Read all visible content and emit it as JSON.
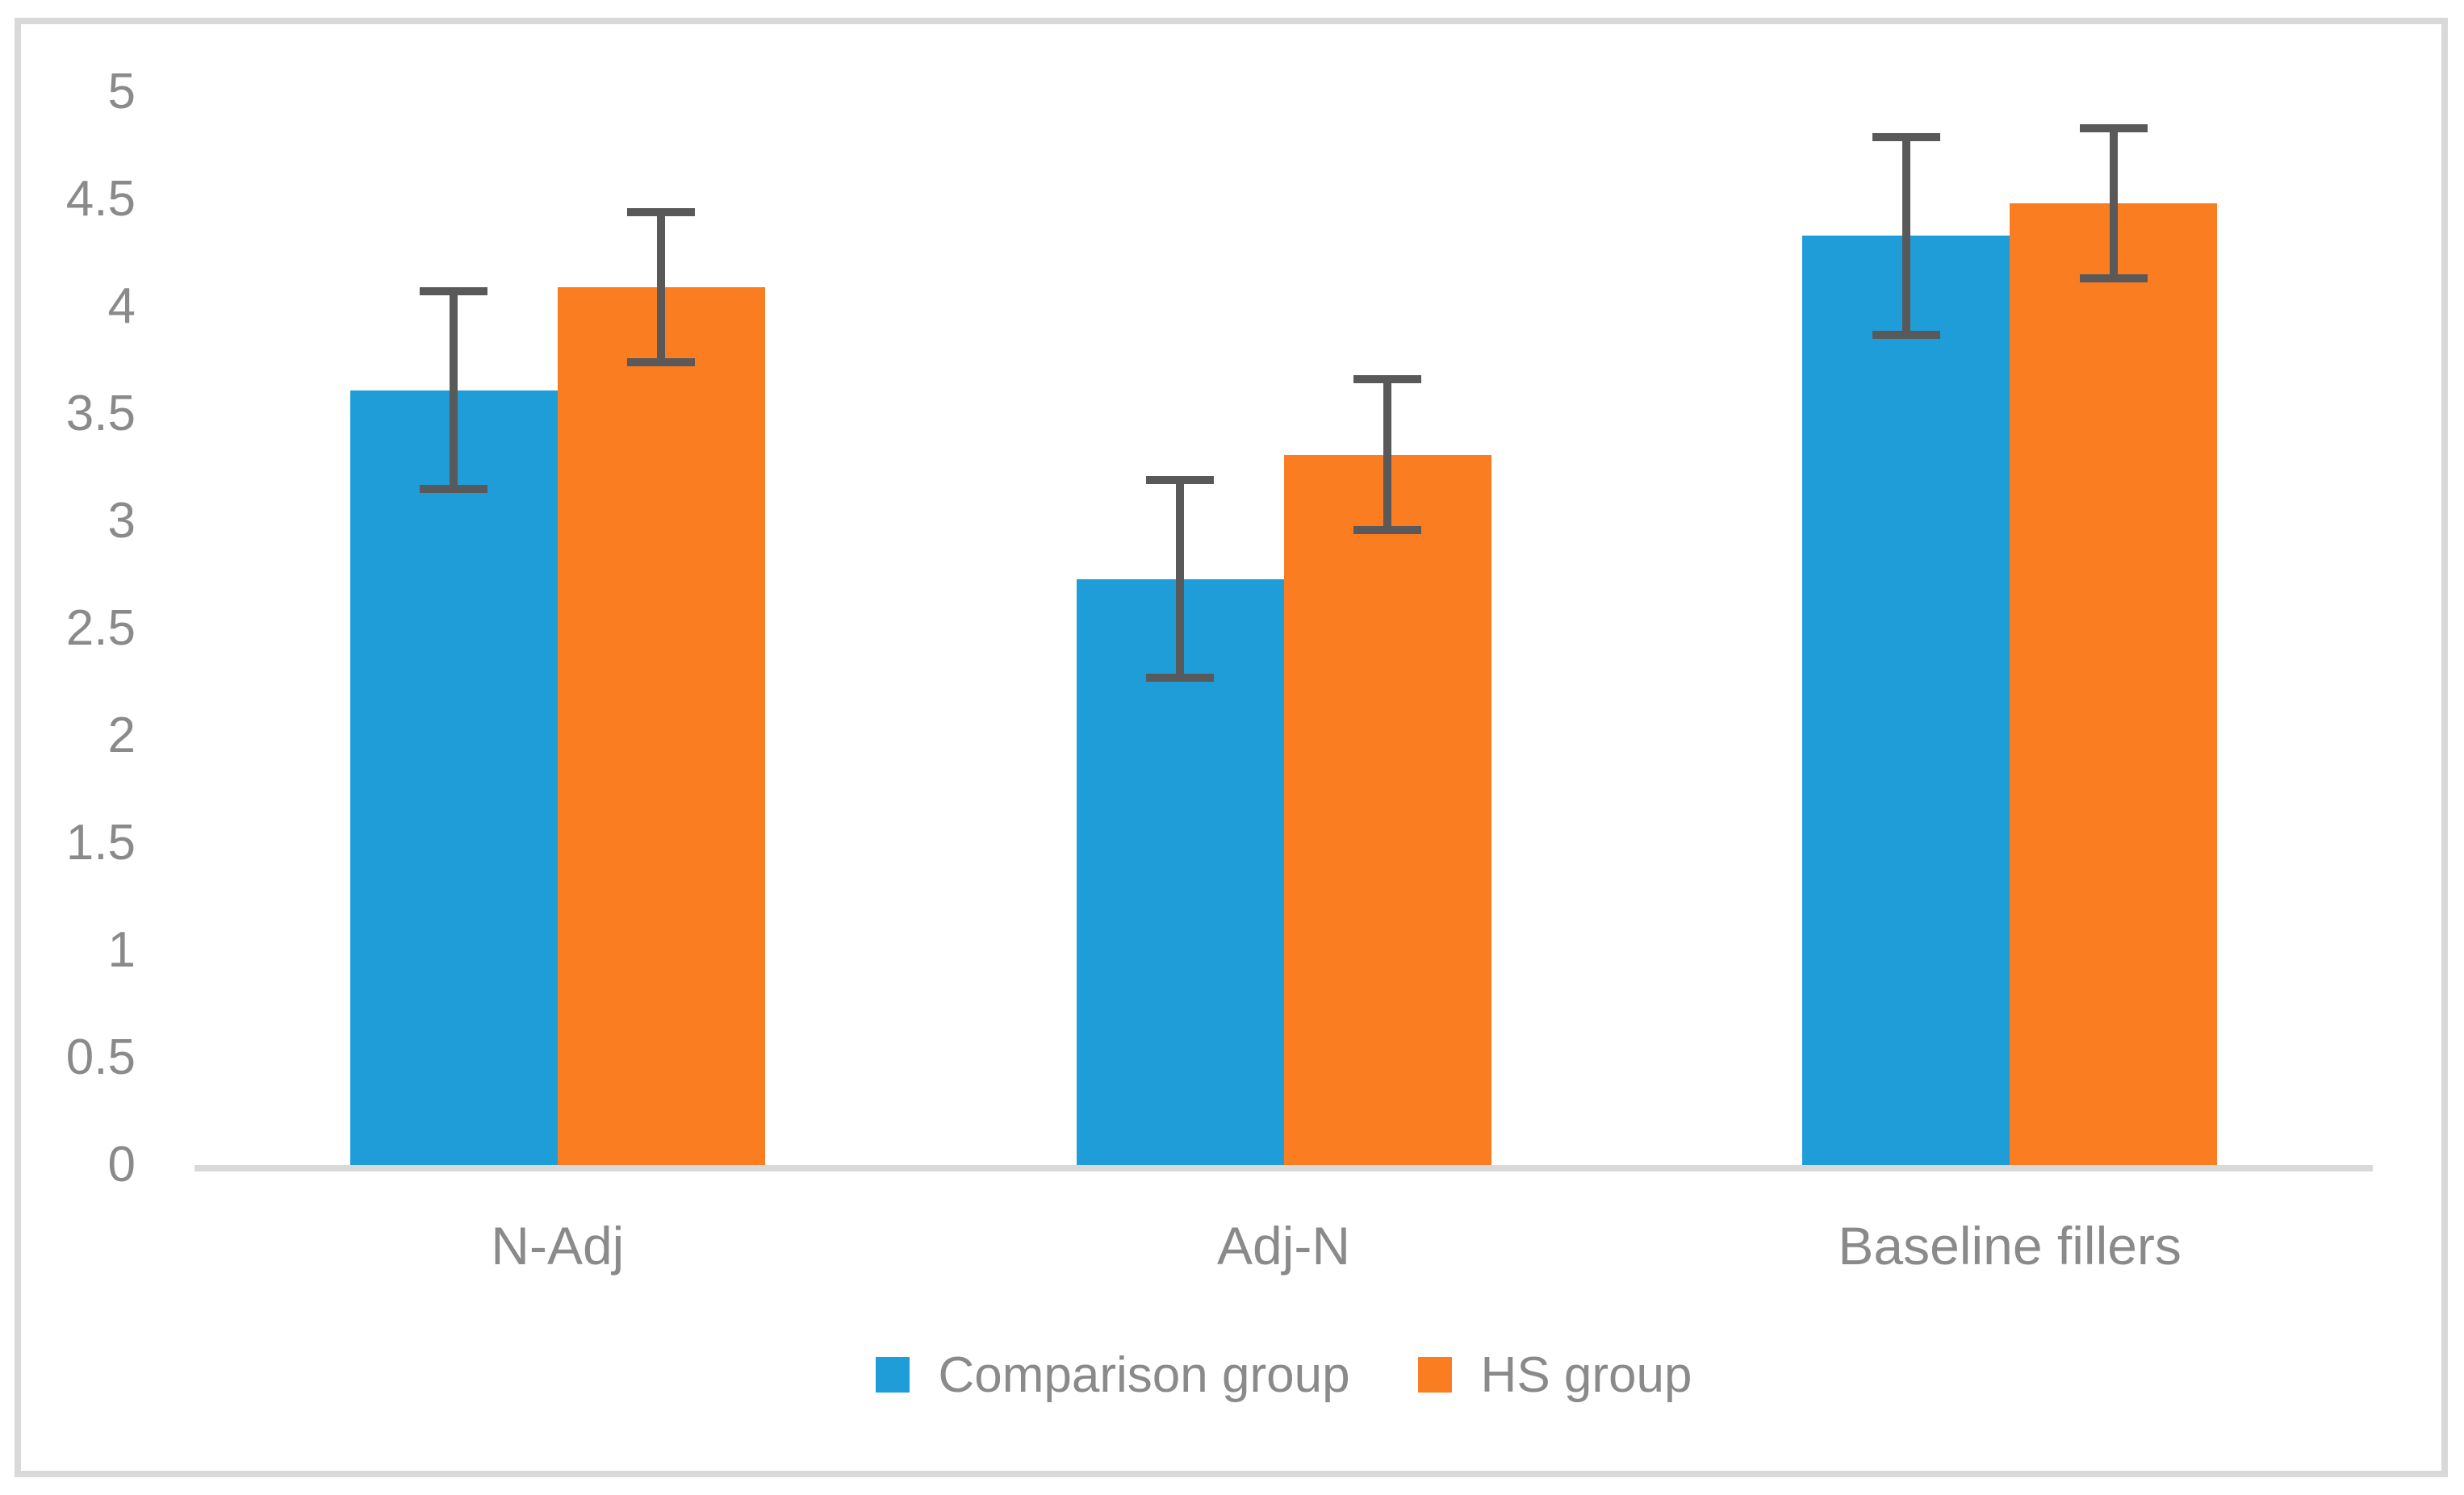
{
  "chart_data": {
    "type": "bar",
    "title": "",
    "xlabel": "",
    "ylabel": "",
    "categories": [
      "N-Adj",
      "Adj-N",
      "Baseline fillers"
    ],
    "series": [
      {
        "name": "Comparison group",
        "color": "#1F9DD9",
        "values": [
          3.61,
          2.73,
          4.33
        ],
        "error_low": [
          3.15,
          2.27,
          3.87
        ],
        "error_high": [
          4.07,
          3.19,
          4.79
        ]
      },
      {
        "name": "HS group",
        "color": "#FB7D22",
        "values": [
          4.09,
          3.31,
          4.48
        ],
        "error_low": [
          3.74,
          2.96,
          4.13
        ],
        "error_high": [
          4.44,
          3.66,
          4.83
        ]
      }
    ],
    "ylim": [
      0,
      5
    ],
    "ytick_step": 0.5,
    "ytick_labels": [
      "0",
      "0.5",
      "1",
      "1.5",
      "2",
      "2.5",
      "3",
      "3.5",
      "4",
      "4.5",
      "5"
    ],
    "grid": false,
    "legend_position": "bottom",
    "error_bar_color": "#595959",
    "axis_line_color": "#D9D9D9",
    "label_text_color": "#8A8A8A",
    "background_color": "#FFFFFF",
    "border_color": "#D9D9D9"
  }
}
